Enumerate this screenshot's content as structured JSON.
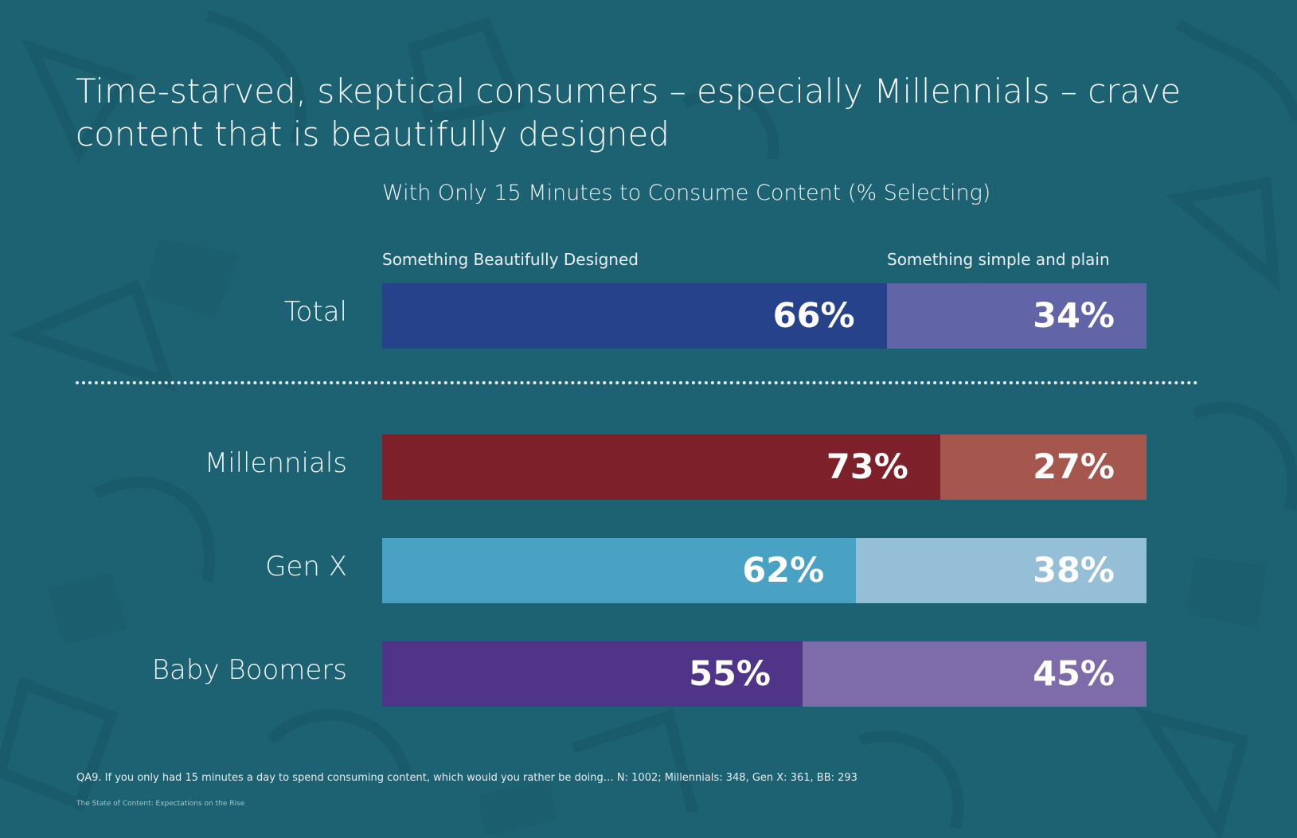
{
  "headline": "Time-starved, skeptical consumers – especially Millennials – crave content that is beautifully designed",
  "footnote": "QA9. If you only had 15 minutes a day to spend consuming content, which would you rather be doing… N: 1002; Millennials: 348, Gen X: 361, BB: 293",
  "source": "The State of Content: Expectations on the Rise",
  "chart_data": {
    "type": "bar",
    "stacked": true,
    "orientation": "horizontal",
    "title": "With Only 15 Minutes to Consume Content (% Selecting)",
    "categories": [
      "Total",
      "Millennials",
      "Gen X",
      "Baby Boomers"
    ],
    "series": [
      {
        "name": "Something Beautifully Designed",
        "values": [
          66,
          73,
          62,
          55
        ]
      },
      {
        "name": "Something simple and plain",
        "values": [
          34,
          27,
          38,
          45
        ]
      }
    ],
    "value_labels": [
      [
        "66%",
        "34%"
      ],
      [
        "73%",
        "27%"
      ],
      [
        "62%",
        "38%"
      ],
      [
        "55%",
        "45%"
      ]
    ],
    "colors": [
      [
        "#26428a",
        "#6264a8"
      ],
      [
        "#7d2029",
        "#a5574d"
      ],
      [
        "#49a2c4",
        "#95bfd6"
      ],
      [
        "#4f3488",
        "#7e6ba9"
      ]
    ],
    "xlim": [
      0,
      100
    ],
    "legend_position": "top",
    "grid": false
  }
}
